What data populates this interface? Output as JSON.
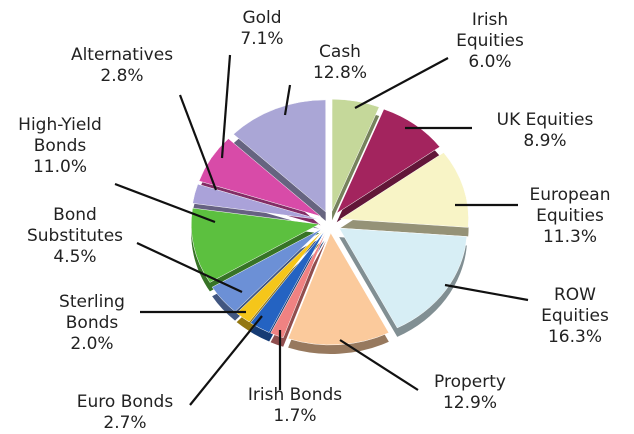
{
  "chart_data": {
    "type": "pie",
    "categories": [
      "Irish Equities",
      "UK Equities",
      "European Equities",
      "ROW Equities",
      "Property",
      "Irish Bonds",
      "Euro Bonds",
      "Sterling Bonds",
      "Bond Substitutes",
      "High-Yield Bonds",
      "Alternatives",
      "Gold",
      "Cash"
    ],
    "values": [
      6,
      8.9,
      11.3,
      16.3,
      12.9,
      1.7,
      2.7,
      2,
      4.5,
      11,
      2.8,
      7.1,
      12.8
    ],
    "value_labels": [
      "6.0%",
      "8.9%",
      "11.3%",
      "16.3%",
      "12.9%",
      "1.7%",
      "2.7%",
      "2.0%",
      "4.5%",
      "11.0%",
      "2.8%",
      "7.1%",
      "12.8%"
    ],
    "colors": [
      "#c5d89a",
      "#a3245e",
      "#f8f4c6",
      "#d7eef5",
      "#fbca9c",
      "#f08282",
      "#2463c2",
      "#f5c61a",
      "#6c90d6",
      "#5cc03f",
      "#aaa2d9",
      "#d84ba8",
      "#aaa6d6"
    ]
  }
}
